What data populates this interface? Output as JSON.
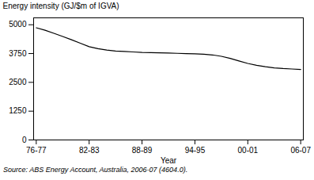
{
  "chart_data": {
    "type": "line",
    "ylabel": "Energy intensity (GJ/$m of IGVA)",
    "xlabel": "Year",
    "source": "Source: ABS Energy Account, Australia, 2006-07 (4604.0).",
    "color": "#000000",
    "xlim": [
      -0.3,
      30.3
    ],
    "xticks": [
      {
        "value": 0,
        "label": "76-77"
      },
      {
        "value": 6,
        "label": "82-83"
      },
      {
        "value": 12,
        "label": "88-89"
      },
      {
        "value": 18,
        "label": "94-95"
      },
      {
        "value": 24,
        "label": "00-01"
      },
      {
        "value": 30,
        "label": "06-07"
      }
    ],
    "ylim": [
      0,
      5300
    ],
    "yticks": [
      0,
      1250,
      2500,
      3750,
      5000
    ],
    "x": [
      0,
      1,
      2,
      3,
      4,
      5,
      6,
      7,
      8,
      9,
      10,
      11,
      12,
      13,
      14,
      15,
      16,
      17,
      18,
      19,
      20,
      21,
      22,
      23,
      24,
      25,
      26,
      27,
      28,
      29,
      30
    ],
    "values": [
      4870,
      4760,
      4630,
      4490,
      4350,
      4200,
      4050,
      3960,
      3900,
      3860,
      3840,
      3820,
      3800,
      3790,
      3780,
      3770,
      3760,
      3750,
      3740,
      3720,
      3690,
      3630,
      3540,
      3430,
      3320,
      3240,
      3180,
      3130,
      3100,
      3080,
      3060
    ]
  }
}
